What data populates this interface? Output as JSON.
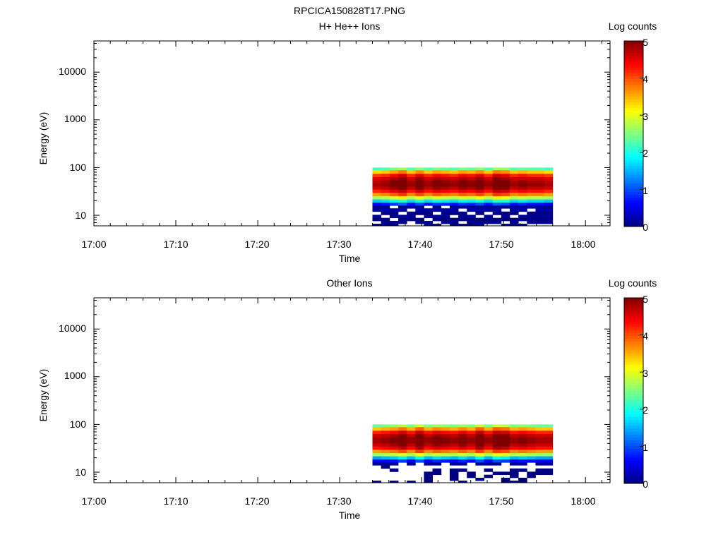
{
  "figure_title": "RPCICA150828T17.PNG",
  "chart_data": [
    {
      "type": "heatmap",
      "title": "H+ He++ Ions",
      "xlabel": "Time",
      "ylabel": "Energy (eV)",
      "y_scale": "log",
      "x_range": [
        "17:00",
        "18:03"
      ],
      "y_range": [
        6,
        45000
      ],
      "x_ticks": [
        "17:00",
        "17:10",
        "17:20",
        "17:30",
        "17:40",
        "17:50",
        "18:00"
      ],
      "y_ticks": [
        "10",
        "100",
        "1000",
        "10000"
      ],
      "colorbar": {
        "label": "Log counts",
        "range": [
          0,
          5
        ],
        "ticks": [
          "0",
          "1",
          "2",
          "3",
          "4",
          "5"
        ],
        "colormap": "jet"
      },
      "data_time_range": [
        "17:34",
        "17:56"
      ],
      "data_energy_range_ev": [
        6,
        100
      ],
      "bins_time": [
        "17:35",
        "17:36",
        "17:37",
        "17:38",
        "17:39",
        "17:40",
        "17:41",
        "17:42",
        "17:43",
        "17:44",
        "17:45",
        "17:46",
        "17:47",
        "17:48",
        "17:49",
        "17:50",
        "17:51",
        "17:52",
        "17:53",
        "17:54",
        "17:55"
      ],
      "energy_levels_ev": [
        96,
        80,
        68,
        58,
        50,
        43,
        37,
        32,
        27,
        23,
        20,
        17,
        15,
        13,
        11,
        9.5,
        8.2,
        7.1,
        6.2
      ],
      "profile_log_counts": [
        2.2,
        3.3,
        4.1,
        4.5,
        4.7,
        4.8,
        4.6,
        4.2,
        3.6,
        2.7,
        1.6,
        0.6,
        0.1,
        0.2,
        0.0,
        0.1,
        0.0,
        0.1,
        0.0
      ],
      "column_offsets": [
        0,
        0.1,
        0.3,
        0.5,
        0.1,
        0.4,
        0.1,
        0.3,
        0.2,
        0.1,
        0.3,
        0.2,
        0.4,
        0.1,
        0.5,
        0.4,
        0.1,
        0.2,
        0.1,
        0.1,
        0.0
      ],
      "low_energy_mask": [
        [
          1,
          1,
          0,
          1,
          1,
          1,
          0,
          1,
          0,
          1,
          1,
          1,
          1,
          1,
          1,
          1,
          1,
          1,
          1,
          1,
          1
        ],
        [
          1,
          1,
          1,
          1,
          0,
          1,
          1,
          1,
          1,
          1,
          0,
          1,
          1,
          1,
          1,
          0,
          1,
          1,
          0,
          1,
          1
        ],
        [
          0,
          1,
          1,
          0,
          1,
          1,
          1,
          0,
          1,
          1,
          1,
          0,
          1,
          0,
          1,
          1,
          1,
          0,
          1,
          1,
          1
        ],
        [
          1,
          0,
          1,
          1,
          1,
          0,
          1,
          1,
          1,
          0,
          1,
          1,
          0,
          1,
          0,
          1,
          0,
          1,
          1,
          1,
          1
        ],
        [
          1,
          1,
          0,
          1,
          1,
          1,
          0,
          1,
          1,
          1,
          1,
          1,
          1,
          1,
          1,
          1,
          1,
          1,
          1,
          1,
          1
        ],
        [
          0,
          1,
          1,
          1,
          0,
          1,
          1,
          0,
          1,
          1,
          0,
          1,
          1,
          1,
          1,
          0,
          1,
          0,
          1,
          1,
          1
        ],
        [
          1,
          1,
          1,
          0,
          0,
          0,
          1,
          1,
          0,
          1,
          1,
          1,
          1,
          0,
          0,
          1,
          1,
          1,
          0,
          0,
          0
        ]
      ]
    },
    {
      "type": "heatmap",
      "title": "Other Ions",
      "xlabel": "Time",
      "ylabel": "Energy (eV)",
      "y_scale": "log",
      "x_range": [
        "17:00",
        "18:03"
      ],
      "y_range": [
        6,
        45000
      ],
      "x_ticks": [
        "17:00",
        "17:10",
        "17:20",
        "17:30",
        "17:40",
        "17:50",
        "18:00"
      ],
      "y_ticks": [
        "10",
        "100",
        "1000",
        "10000"
      ],
      "colorbar": {
        "label": "Log counts",
        "range": [
          0,
          5
        ],
        "ticks": [
          "0",
          "1",
          "2",
          "3",
          "4",
          "5"
        ],
        "colormap": "jet"
      },
      "data_time_range": [
        "17:34",
        "17:56"
      ],
      "data_energy_range_ev": [
        6,
        100
      ],
      "bins_time": [
        "17:35",
        "17:36",
        "17:37",
        "17:38",
        "17:39",
        "17:40",
        "17:41",
        "17:42",
        "17:43",
        "17:44",
        "17:45",
        "17:46",
        "17:47",
        "17:48",
        "17:49",
        "17:50",
        "17:51",
        "17:52",
        "17:53",
        "17:54",
        "17:55"
      ],
      "energy_levels_ev": [
        96,
        80,
        68,
        58,
        50,
        43,
        37,
        32,
        27,
        23,
        20,
        17,
        15,
        13,
        11,
        9.5,
        8.2,
        7.1,
        6.2
      ],
      "profile_log_counts": [
        2.4,
        3.4,
        4.2,
        4.6,
        4.8,
        4.8,
        4.6,
        4.3,
        3.6,
        2.6,
        1.4,
        0.5,
        0.1,
        0.0,
        0.0,
        0.0,
        0.0,
        0.0,
        0.0
      ],
      "column_offsets": [
        0,
        0.1,
        0.2,
        0.4,
        0.1,
        0.5,
        0.1,
        0.3,
        0.2,
        0.1,
        0.3,
        0.1,
        0.5,
        0.1,
        0.5,
        0.4,
        0.1,
        0.2,
        0.1,
        0.0,
        0.0
      ],
      "low_energy_mask": [
        [
          1,
          1,
          1,
          0,
          1,
          0,
          1,
          1,
          0,
          1,
          1,
          0,
          1,
          1,
          1,
          0,
          1,
          1,
          0,
          1,
          1
        ],
        [
          0,
          1,
          0,
          0,
          0,
          0,
          0,
          0,
          0,
          0,
          0,
          0,
          0,
          0,
          0,
          0,
          0,
          0,
          0,
          0,
          0
        ],
        [
          0,
          0,
          1,
          0,
          0,
          0,
          0,
          1,
          0,
          1,
          1,
          0,
          0,
          1,
          0,
          0,
          1,
          1,
          0,
          1,
          1
        ],
        [
          0,
          0,
          0,
          0,
          0,
          0,
          1,
          1,
          0,
          1,
          0,
          1,
          0,
          0,
          1,
          1,
          1,
          0,
          1,
          1,
          1
        ],
        [
          0,
          0,
          0,
          0,
          0,
          0,
          1,
          0,
          0,
          1,
          0,
          1,
          0,
          1,
          0,
          0,
          1,
          0,
          1,
          0,
          0
        ],
        [
          0,
          0,
          0,
          0,
          0,
          0,
          1,
          0,
          0,
          1,
          0,
          0,
          1,
          0,
          0,
          1,
          0,
          1,
          0,
          0,
          0
        ],
        [
          1,
          0,
          1,
          0,
          1,
          0,
          1,
          0,
          0,
          0,
          1,
          0,
          0,
          0,
          0,
          1,
          1,
          1,
          0,
          0,
          0
        ]
      ]
    }
  ]
}
